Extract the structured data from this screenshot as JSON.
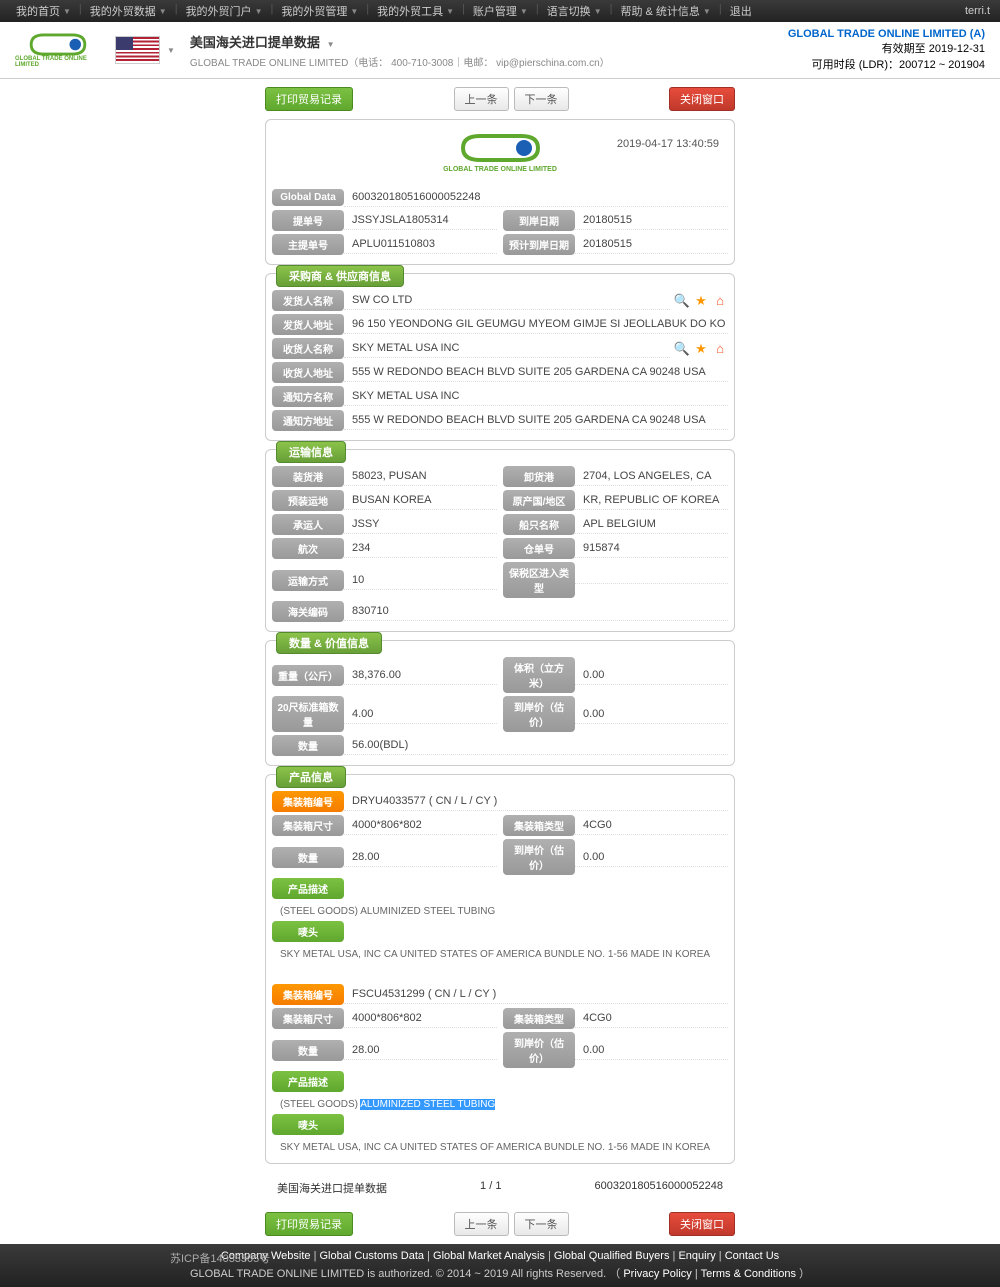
{
  "user": "terri.t",
  "topnav": [
    "我的首页",
    "我的外贸数据",
    "我的外贸门户",
    "我的外贸管理",
    "我的外贸工具",
    "账户管理",
    "语言切换",
    "帮助 & 统计信息",
    "退出"
  ],
  "header": {
    "title": "美国海关进口提单数据",
    "subtitle": "GLOBAL TRADE ONLINE LIMITED（电话： 400-710-3008｜电邮： vip@pierschina.com.cn）",
    "company": "GLOBAL TRADE ONLINE LIMITED (A)",
    "valid": "有效期至 2019-12-31",
    "period": "可用时段 (LDR)：200712 ~ 201904"
  },
  "actions": {
    "print": "打印贸易记录",
    "prev": "上一条",
    "next": "下一条",
    "close": "关闭窗口"
  },
  "timestamp": "2019-04-17 13:40:59",
  "global": {
    "label": "Global Data",
    "value": "600320180516000052248",
    "rows": [
      {
        "l": "提单号",
        "v": "JSSYJSLA1805314",
        "l2": "到岸日期",
        "v2": "20180515"
      },
      {
        "l": "主提单号",
        "v": "APLU011510803",
        "l2": "预计到岸日期",
        "v2": "20180515"
      }
    ]
  },
  "trade": {
    "title": "采购商 & 供应商信息",
    "rows": [
      {
        "l": "发货人名称",
        "v": "SW CO LTD",
        "icons": true
      },
      {
        "l": "发货人地址",
        "v": "96 150 YEONDONG GIL GEUMGU MYEOM GIMJE SI JEOLLABUK DO KO"
      },
      {
        "l": "收货人名称",
        "v": "SKY METAL USA INC",
        "icons": true
      },
      {
        "l": "收货人地址",
        "v": "555 W REDONDO BEACH BLVD SUITE 205 GARDENA CA 90248 USA"
      },
      {
        "l": "通知方名称",
        "v": "SKY METAL USA INC"
      },
      {
        "l": "通知方地址",
        "v": "555 W REDONDO BEACH BLVD SUITE 205 GARDENA CA 90248 USA"
      }
    ]
  },
  "transport": {
    "title": "运输信息",
    "rows": [
      {
        "l": "装货港",
        "v": "58023, PUSAN",
        "l2": "卸货港",
        "v2": "2704, LOS ANGELES, CA"
      },
      {
        "l": "预装运地",
        "v": "BUSAN KOREA",
        "l2": "原产国/地区",
        "v2": "KR, REPUBLIC OF KOREA"
      },
      {
        "l": "承运人",
        "v": "JSSY",
        "l2": "船只名称",
        "v2": "APL BELGIUM"
      },
      {
        "l": "航次",
        "v": "234",
        "l2": "仓单号",
        "v2": "915874"
      },
      {
        "l": "运输方式",
        "v": "10",
        "l2": "保税区进入类型",
        "v2": ""
      },
      {
        "l": "海关编码",
        "v": "830710"
      }
    ]
  },
  "qty": {
    "title": "数量 & 价值信息",
    "rows": [
      {
        "l": "重量（公斤）",
        "v": "38,376.00",
        "l2": "体积（立方米）",
        "v2": "0.00"
      },
      {
        "l": "20尺标准箱数量",
        "v": "4.00",
        "l2": "到岸价（估价）",
        "v2": "0.00"
      },
      {
        "l": "数量",
        "v": "56.00(BDL)"
      }
    ]
  },
  "product": {
    "title": "产品信息",
    "containers": [
      {
        "no": "DRYU4033577 ( CN / L / CY )",
        "size": "4000*806*802",
        "type": "4CG0",
        "qty": "28.00",
        "price": "0.00",
        "desc": "(STEEL GOODS) ALUMINIZED STEEL TUBING",
        "mark": "SKY METAL USA, INC CA UNITED STATES OF AMERICA BUNDLE NO. 1-56 MADE IN KOREA"
      },
      {
        "no": "FSCU4531299 ( CN / L / CY )",
        "size": "4000*806*802",
        "type": "4CG0",
        "qty": "28.00",
        "price": "0.00",
        "desc_pre": "(STEEL GOODS) ",
        "desc_hl": "ALUMINIZED STEEL TUBING",
        "mark": "SKY METAL USA, INC CA UNITED STATES OF AMERICA BUNDLE NO. 1-56 MADE IN KOREA"
      }
    ],
    "labels": {
      "no": "集装箱编号",
      "size": "集装箱尺寸",
      "type": "集装箱类型",
      "qty": "数量",
      "price": "到岸价（估价）",
      "desc": "产品描述",
      "mark": "唛头"
    }
  },
  "footer": {
    "src": "美国海关进口提单数据",
    "page": "1 / 1",
    "id": "600320180516000052248",
    "icp": "苏ICP备14033305号",
    "links": [
      "Company Website",
      "Global Customs Data",
      "Global Market Analysis",
      "Global Qualified Buyers",
      "Enquiry",
      "Contact Us"
    ],
    "copy": "GLOBAL TRADE ONLINE LIMITED is authorized. © 2014 ~ 2019 All rights Reserved.",
    "pp": "Privacy Policy",
    "tc": "Terms & Conditions"
  }
}
